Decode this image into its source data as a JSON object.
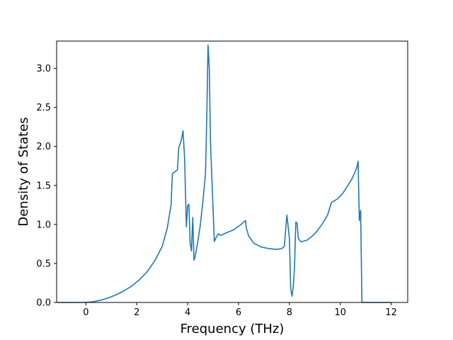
{
  "chart_data": {
    "type": "line",
    "title": "",
    "xlabel": "Frequency (THz)",
    "ylabel": "Density of States",
    "xlim": [
      -1.15,
      12.65
    ],
    "ylim": [
      0.0,
      3.35
    ],
    "xticks": [
      0,
      2,
      4,
      6,
      8,
      10,
      12
    ],
    "yticks": [
      0.0,
      0.5,
      1.0,
      1.5,
      2.0,
      2.5,
      3.0
    ],
    "xtick_labels": [
      "0",
      "2",
      "4",
      "6",
      "8",
      "10",
      "12"
    ],
    "ytick_labels": [
      "0.0",
      "0.5",
      "1.0",
      "1.5",
      "2.0",
      "2.5",
      "3.0"
    ],
    "grid": false,
    "line_color": "#1f77b4",
    "series": [
      {
        "x": [
          -1.1,
          -0.5,
          0.0,
          0.3,
          0.6,
          0.9,
          1.2,
          1.5,
          1.8,
          2.1,
          2.4,
          2.7,
          3.0,
          3.2,
          3.35,
          3.4,
          3.6,
          3.65,
          3.75,
          3.82,
          3.88,
          3.95,
          4.0,
          4.05,
          4.1,
          4.15,
          4.2,
          4.25,
          4.3,
          4.4,
          4.5,
          4.6,
          4.7,
          4.75,
          4.8,
          4.85,
          4.9,
          5.0,
          5.05,
          5.1,
          5.2,
          5.3,
          5.5,
          5.8,
          6.1,
          6.28,
          6.3,
          6.4,
          6.6,
          6.9,
          7.2,
          7.5,
          7.7,
          7.8,
          7.9,
          8.0,
          8.05,
          8.1,
          8.15,
          8.2,
          8.25,
          8.3,
          8.35,
          8.45,
          8.5,
          8.7,
          8.9,
          9.1,
          9.3,
          9.5,
          9.65,
          9.75,
          9.9,
          10.1,
          10.2,
          10.3,
          10.45,
          10.55,
          10.65,
          10.7,
          10.75,
          10.8,
          10.85,
          10.9,
          11.2,
          12.0
        ],
        "y": [
          0.0,
          0.0,
          0.0,
          0.01,
          0.03,
          0.06,
          0.1,
          0.15,
          0.21,
          0.29,
          0.39,
          0.53,
          0.72,
          0.95,
          1.25,
          1.65,
          1.7,
          1.98,
          2.08,
          2.2,
          1.85,
          0.97,
          1.24,
          1.26,
          0.75,
          0.66,
          1.09,
          0.54,
          0.6,
          0.78,
          1.0,
          1.3,
          1.65,
          2.35,
          3.3,
          3.0,
          2.05,
          1.2,
          0.78,
          0.82,
          0.88,
          0.86,
          0.89,
          0.93,
          1.0,
          1.05,
          0.96,
          0.85,
          0.76,
          0.71,
          0.69,
          0.68,
          0.69,
          0.72,
          1.12,
          0.82,
          0.18,
          0.08,
          0.2,
          0.45,
          1.03,
          1.02,
          0.82,
          0.78,
          0.78,
          0.8,
          0.85,
          0.92,
          1.01,
          1.12,
          1.28,
          1.3,
          1.33,
          1.4,
          1.45,
          1.5,
          1.58,
          1.65,
          1.73,
          1.81,
          1.05,
          1.18,
          0.0,
          0.0,
          0.0,
          0.0
        ]
      }
    ]
  }
}
